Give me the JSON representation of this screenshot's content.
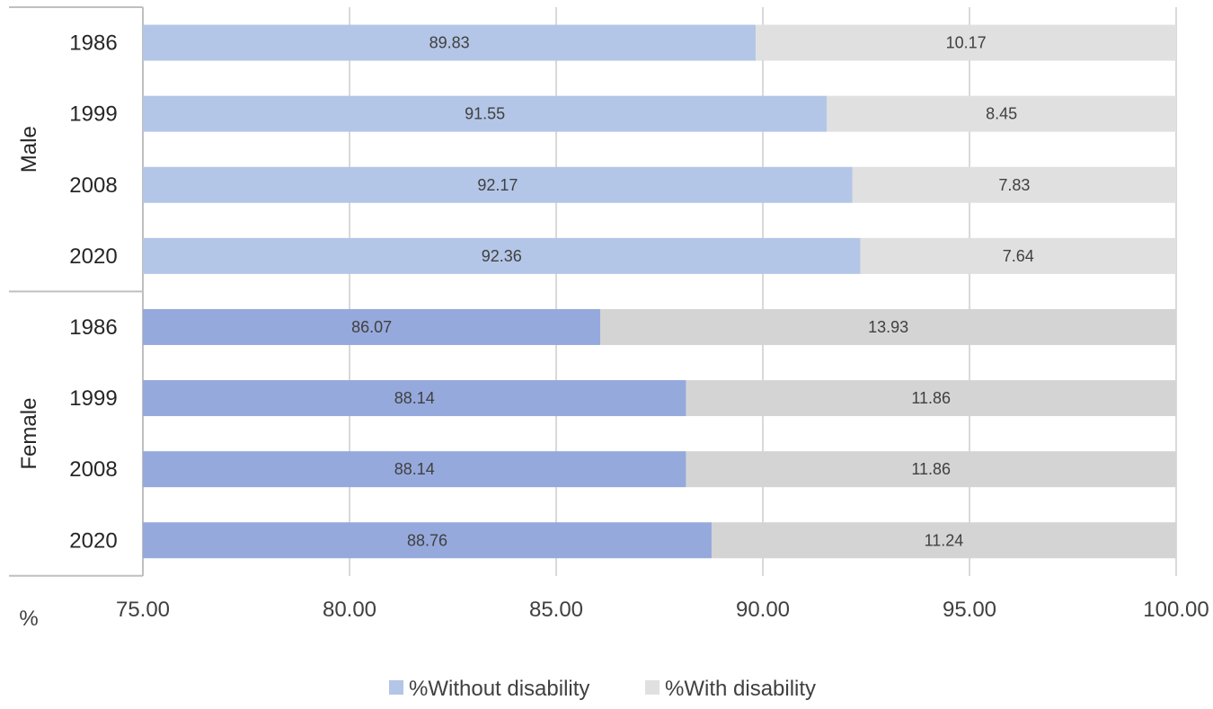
{
  "chart_data": {
    "type": "bar",
    "orientation": "horizontal",
    "stacked": true,
    "unit_label": "%",
    "xlim": [
      75,
      100
    ],
    "x_ticks": [
      "75.00",
      "80.00",
      "85.00",
      "90.00",
      "95.00",
      "100.00"
    ],
    "x_tick_values": [
      75,
      80,
      85,
      90,
      95,
      100
    ],
    "grid": true,
    "legend_position": "bottom",
    "groups": [
      {
        "name": "Male",
        "categories": [
          "1986",
          "1999",
          "2008",
          "2020"
        ],
        "without": [
          89.83,
          91.55,
          92.17,
          92.36
        ],
        "with": [
          10.17,
          8.45,
          7.83,
          7.64
        ],
        "colors": {
          "without": "#b4c6e7",
          "with": "#e0e0e0"
        }
      },
      {
        "name": "Female",
        "categories": [
          "1986",
          "1999",
          "2008",
          "2020"
        ],
        "without": [
          86.07,
          88.14,
          88.14,
          88.76
        ],
        "with": [
          13.93,
          11.86,
          11.86,
          11.24
        ],
        "colors": {
          "without": "#96a9dc",
          "with": "#d4d4d4"
        }
      }
    ],
    "series": [
      {
        "name": "%Without disability",
        "color": "#b4c6e7"
      },
      {
        "name": "%With disability",
        "color": "#e0e0e0"
      }
    ]
  }
}
